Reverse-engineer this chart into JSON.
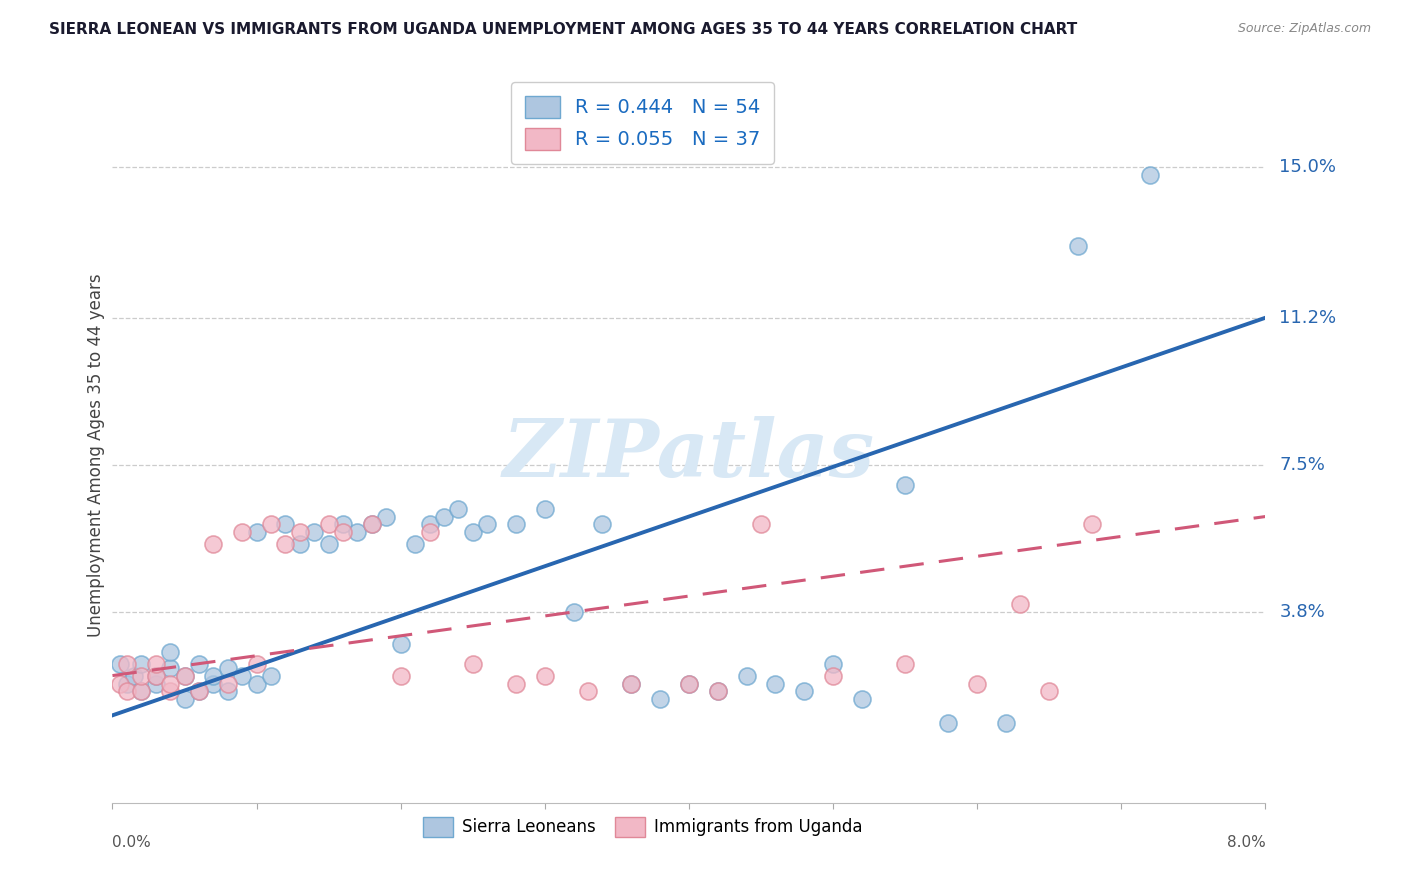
{
  "title": "SIERRA LEONEAN VS IMMIGRANTS FROM UGANDA UNEMPLOYMENT AMONG AGES 35 TO 44 YEARS CORRELATION CHART",
  "source": "Source: ZipAtlas.com",
  "ylabel": "Unemployment Among Ages 35 to 44 years",
  "xmin": 0.0,
  "xmax": 0.08,
  "ymin": -0.01,
  "ymax": 0.165,
  "blue_R": 0.444,
  "blue_N": 54,
  "pink_R": 0.055,
  "pink_N": 37,
  "blue_color": "#aec6e0",
  "blue_edge": "#6fa8d0",
  "pink_color": "#f2b8c6",
  "pink_edge": "#e08898",
  "blue_line_color": "#2866b0",
  "pink_line_color": "#d05878",
  "blue_label": "Sierra Leoneans",
  "pink_label": "Immigrants from Uganda",
  "watermark": "ZIPatlas",
  "ytick_vals": [
    0.038,
    0.075,
    0.112,
    0.15
  ],
  "ytick_labels": [
    "3.8%",
    "7.5%",
    "11.2%",
    "15.0%"
  ],
  "blue_line_x0": 0.0,
  "blue_line_y0": 0.012,
  "blue_line_x1": 0.08,
  "blue_line_y1": 0.112,
  "pink_line_x0": 0.0,
  "pink_line_y0": 0.022,
  "pink_line_x1": 0.08,
  "pink_line_y1": 0.062,
  "blue_scatter_x": [
    0.0005,
    0.001,
    0.0015,
    0.002,
    0.002,
    0.003,
    0.003,
    0.004,
    0.004,
    0.005,
    0.005,
    0.006,
    0.006,
    0.007,
    0.007,
    0.008,
    0.008,
    0.009,
    0.01,
    0.01,
    0.011,
    0.012,
    0.013,
    0.014,
    0.015,
    0.016,
    0.017,
    0.018,
    0.019,
    0.02,
    0.021,
    0.022,
    0.023,
    0.024,
    0.025,
    0.026,
    0.028,
    0.03,
    0.032,
    0.034,
    0.036,
    0.038,
    0.04,
    0.042,
    0.044,
    0.046,
    0.048,
    0.05,
    0.052,
    0.055,
    0.058,
    0.062,
    0.067,
    0.072
  ],
  "blue_scatter_y": [
    0.025,
    0.02,
    0.022,
    0.018,
    0.025,
    0.02,
    0.022,
    0.024,
    0.028,
    0.022,
    0.016,
    0.018,
    0.025,
    0.02,
    0.022,
    0.018,
    0.024,
    0.022,
    0.058,
    0.02,
    0.022,
    0.06,
    0.055,
    0.058,
    0.055,
    0.06,
    0.058,
    0.06,
    0.062,
    0.03,
    0.055,
    0.06,
    0.062,
    0.064,
    0.058,
    0.06,
    0.06,
    0.064,
    0.038,
    0.06,
    0.02,
    0.016,
    0.02,
    0.018,
    0.022,
    0.02,
    0.018,
    0.025,
    0.016,
    0.07,
    0.01,
    0.01,
    0.13,
    0.148
  ],
  "pink_scatter_x": [
    0.0005,
    0.001,
    0.001,
    0.002,
    0.002,
    0.003,
    0.003,
    0.004,
    0.004,
    0.005,
    0.006,
    0.007,
    0.008,
    0.009,
    0.01,
    0.011,
    0.012,
    0.013,
    0.015,
    0.016,
    0.018,
    0.02,
    0.022,
    0.025,
    0.028,
    0.03,
    0.033,
    0.036,
    0.04,
    0.042,
    0.045,
    0.05,
    0.055,
    0.06,
    0.063,
    0.065,
    0.068
  ],
  "pink_scatter_y": [
    0.02,
    0.018,
    0.025,
    0.018,
    0.022,
    0.022,
    0.025,
    0.018,
    0.02,
    0.022,
    0.018,
    0.055,
    0.02,
    0.058,
    0.025,
    0.06,
    0.055,
    0.058,
    0.06,
    0.058,
    0.06,
    0.022,
    0.058,
    0.025,
    0.02,
    0.022,
    0.018,
    0.02,
    0.02,
    0.018,
    0.06,
    0.022,
    0.025,
    0.02,
    0.04,
    0.018,
    0.06
  ]
}
